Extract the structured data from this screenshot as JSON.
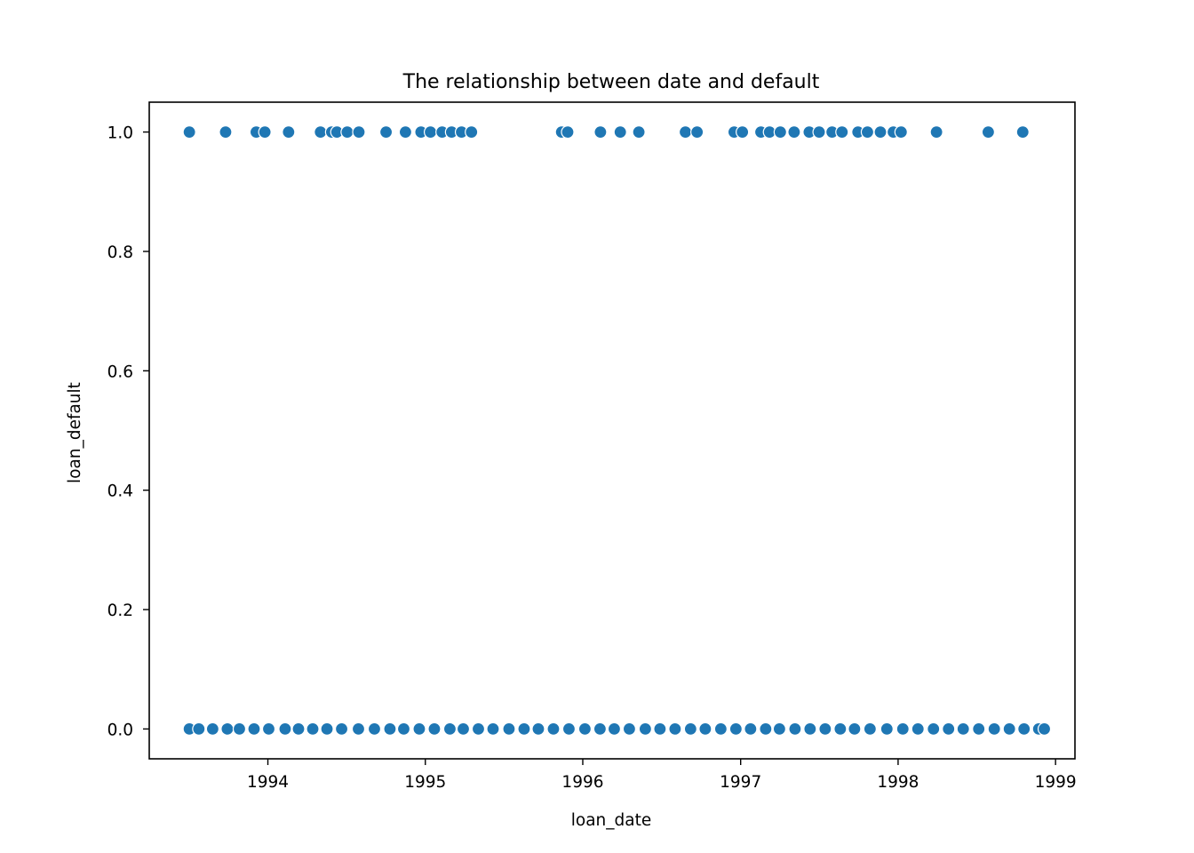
{
  "chart_data": {
    "type": "scatter",
    "title": "The relationship between date and default",
    "xlabel": "loan_date",
    "ylabel": "loan_default",
    "xlim": [
      "1993-04-01",
      "1999-02-15"
    ],
    "ylim": [
      -0.05,
      1.05
    ],
    "x_ticks": [
      "1994",
      "1995",
      "1996",
      "1997",
      "1998",
      "1999"
    ],
    "y_ticks": [
      "0.0",
      "0.2",
      "0.4",
      "0.6",
      "0.8",
      "1.0"
    ],
    "grid": false,
    "color": "#1f77b4",
    "series": [
      {
        "values": [
          {
            "x": "1993-07-03",
            "y": 1
          },
          {
            "x": "1993-09-25",
            "y": 1
          },
          {
            "x": "1993-12-05",
            "y": 1
          },
          {
            "x": "1993-12-25",
            "y": 1
          },
          {
            "x": "1994-02-18",
            "y": 1
          },
          {
            "x": "1994-05-03",
            "y": 1
          },
          {
            "x": "1994-05-29",
            "y": 1
          },
          {
            "x": "1994-06-10",
            "y": 1
          },
          {
            "x": "1994-07-04",
            "y": 1
          },
          {
            "x": "1994-07-31",
            "y": 1
          },
          {
            "x": "1994-10-02",
            "y": 1
          },
          {
            "x": "1994-11-16",
            "y": 1
          },
          {
            "x": "1994-12-22",
            "y": 1
          },
          {
            "x": "1995-01-13",
            "y": 1
          },
          {
            "x": "1995-02-09",
            "y": 1
          },
          {
            "x": "1995-03-03",
            "y": 1
          },
          {
            "x": "1995-03-26",
            "y": 1
          },
          {
            "x": "1995-04-18",
            "y": 1
          },
          {
            "x": "1995-11-13",
            "y": 1
          },
          {
            "x": "1995-11-27",
            "y": 1
          },
          {
            "x": "1996-02-11",
            "y": 1
          },
          {
            "x": "1996-03-28",
            "y": 1
          },
          {
            "x": "1996-05-10",
            "y": 1
          },
          {
            "x": "1996-08-26",
            "y": 1
          },
          {
            "x": "1996-09-22",
            "y": 1
          },
          {
            "x": "1996-12-17",
            "y": 1
          },
          {
            "x": "1997-01-05",
            "y": 1
          },
          {
            "x": "1997-02-17",
            "y": 1
          },
          {
            "x": "1997-03-09",
            "y": 1
          },
          {
            "x": "1997-04-03",
            "y": 1
          },
          {
            "x": "1997-05-05",
            "y": 1
          },
          {
            "x": "1997-06-09",
            "y": 1
          },
          {
            "x": "1997-07-02",
            "y": 1
          },
          {
            "x": "1997-08-01",
            "y": 1
          },
          {
            "x": "1997-08-24",
            "y": 1
          },
          {
            "x": "1997-09-30",
            "y": 1
          },
          {
            "x": "1997-10-22",
            "y": 1
          },
          {
            "x": "1997-11-21",
            "y": 1
          },
          {
            "x": "1997-12-21",
            "y": 1
          },
          {
            "x": "1998-01-08",
            "y": 1
          },
          {
            "x": "1998-03-31",
            "y": 1
          },
          {
            "x": "1998-07-29",
            "y": 1
          },
          {
            "x": "1998-10-17",
            "y": 1
          },
          {
            "x": "1993-07-03",
            "y": 0
          },
          {
            "x": "1993-07-25",
            "y": 0
          },
          {
            "x": "1993-08-26",
            "y": 0
          },
          {
            "x": "1993-09-29",
            "y": 0
          },
          {
            "x": "1993-10-27",
            "y": 0
          },
          {
            "x": "1993-11-30",
            "y": 0
          },
          {
            "x": "1994-01-03",
            "y": 0
          },
          {
            "x": "1994-02-10",
            "y": 0
          },
          {
            "x": "1994-03-13",
            "y": 0
          },
          {
            "x": "1994-04-15",
            "y": 0
          },
          {
            "x": "1994-05-18",
            "y": 0
          },
          {
            "x": "1994-06-21",
            "y": 0
          },
          {
            "x": "1994-07-30",
            "y": 0
          },
          {
            "x": "1994-09-05",
            "y": 0
          },
          {
            "x": "1994-10-11",
            "y": 0
          },
          {
            "x": "1994-11-12",
            "y": 0
          },
          {
            "x": "1994-12-18",
            "y": 0
          },
          {
            "x": "1995-01-22",
            "y": 0
          },
          {
            "x": "1995-02-27",
            "y": 0
          },
          {
            "x": "1995-03-30",
            "y": 0
          },
          {
            "x": "1995-05-04",
            "y": 0
          },
          {
            "x": "1995-06-07",
            "y": 0
          },
          {
            "x": "1995-07-14",
            "y": 0
          },
          {
            "x": "1995-08-18",
            "y": 0
          },
          {
            "x": "1995-09-20",
            "y": 0
          },
          {
            "x": "1995-10-25",
            "y": 0
          },
          {
            "x": "1995-11-30",
            "y": 0
          },
          {
            "x": "1996-01-06",
            "y": 0
          },
          {
            "x": "1996-02-10",
            "y": 0
          },
          {
            "x": "1996-03-14",
            "y": 0
          },
          {
            "x": "1996-04-18",
            "y": 0
          },
          {
            "x": "1996-05-25",
            "y": 0
          },
          {
            "x": "1996-06-28",
            "y": 0
          },
          {
            "x": "1996-08-02",
            "y": 0
          },
          {
            "x": "1996-09-07",
            "y": 0
          },
          {
            "x": "1996-10-11",
            "y": 0
          },
          {
            "x": "1996-11-16",
            "y": 0
          },
          {
            "x": "1996-12-21",
            "y": 0
          },
          {
            "x": "1997-01-24",
            "y": 0
          },
          {
            "x": "1997-02-28",
            "y": 0
          },
          {
            "x": "1997-04-01",
            "y": 0
          },
          {
            "x": "1997-05-07",
            "y": 0
          },
          {
            "x": "1997-06-11",
            "y": 0
          },
          {
            "x": "1997-07-16",
            "y": 0
          },
          {
            "x": "1997-08-20",
            "y": 0
          },
          {
            "x": "1997-09-22",
            "y": 0
          },
          {
            "x": "1997-10-28",
            "y": 0
          },
          {
            "x": "1997-12-06",
            "y": 0
          },
          {
            "x": "1998-01-12",
            "y": 0
          },
          {
            "x": "1998-02-16",
            "y": 0
          },
          {
            "x": "1998-03-24",
            "y": 0
          },
          {
            "x": "1998-04-28",
            "y": 0
          },
          {
            "x": "1998-06-01",
            "y": 0
          },
          {
            "x": "1998-07-07",
            "y": 0
          },
          {
            "x": "1998-08-12",
            "y": 0
          },
          {
            "x": "1998-09-16",
            "y": 0
          },
          {
            "x": "1998-10-20",
            "y": 0
          },
          {
            "x": "1998-11-23",
            "y": 0
          },
          {
            "x": "1998-12-06",
            "y": 0
          }
        ]
      }
    ]
  }
}
